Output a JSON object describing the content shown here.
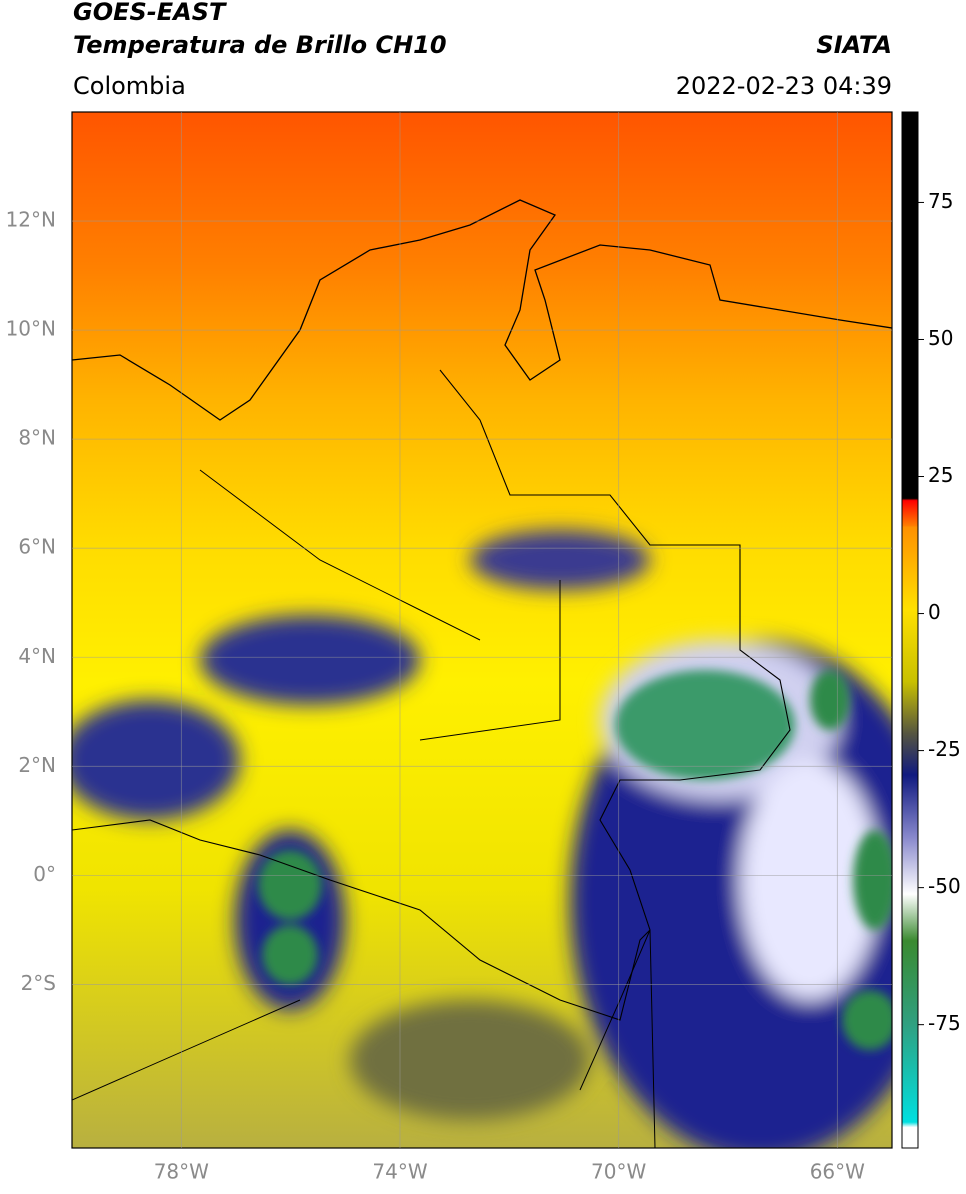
{
  "header": {
    "title_line1": "GOES-EAST",
    "title_line2": "Temperatura de Brillo CH10",
    "region": "Colombia",
    "source": "SIATA",
    "datetime": "2022-02-23 04:39"
  },
  "map": {
    "xlim": [
      -80,
      -65
    ],
    "ylim": [
      -5,
      14
    ],
    "xticks": [
      {
        "value": -78,
        "label": "78°W"
      },
      {
        "value": -74,
        "label": "74°W"
      },
      {
        "value": -70,
        "label": "70°W"
      },
      {
        "value": -66,
        "label": "66°W"
      }
    ],
    "yticks": [
      {
        "value": 12,
        "label": "12°N"
      },
      {
        "value": 10,
        "label": "10°N"
      },
      {
        "value": 8,
        "label": "8°N"
      },
      {
        "value": 6,
        "label": "6°N"
      },
      {
        "value": 4,
        "label": "4°N"
      },
      {
        "value": 2,
        "label": "2°N"
      },
      {
        "value": 0,
        "label": "0°"
      },
      {
        "value": -2,
        "label": "2°S"
      }
    ],
    "grid": true
  },
  "colorbar": {
    "lim": [
      -97.5,
      91.5
    ],
    "ticks": [
      75,
      50,
      25,
      0,
      -25,
      -50,
      -75
    ]
  }
}
